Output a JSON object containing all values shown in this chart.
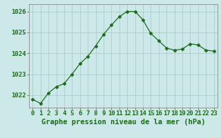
{
  "x": [
    0,
    1,
    2,
    3,
    4,
    5,
    6,
    7,
    8,
    9,
    10,
    11,
    12,
    13,
    14,
    15,
    16,
    17,
    18,
    19,
    20,
    21,
    22,
    23
  ],
  "y": [
    1021.8,
    1021.6,
    1022.1,
    1022.4,
    1022.55,
    1023.0,
    1023.5,
    1023.85,
    1024.35,
    1024.9,
    1025.35,
    1025.75,
    1026.0,
    1026.0,
    1025.6,
    1024.95,
    1024.6,
    1024.25,
    1024.15,
    1024.2,
    1024.45,
    1024.4,
    1024.15,
    1024.1
  ],
  "line_color": "#1a6b1a",
  "marker": "D",
  "marker_size": 2.5,
  "bg_color": "#cce8e8",
  "grid_color": "#aacccc",
  "xlabel": "Graphe pression niveau de la mer (hPa)",
  "ylim": [
    1021.4,
    1026.35
  ],
  "yticks": [
    1022,
    1023,
    1024,
    1025,
    1026
  ],
  "xticks": [
    0,
    1,
    2,
    3,
    4,
    5,
    6,
    7,
    8,
    9,
    10,
    11,
    12,
    13,
    14,
    15,
    16,
    17,
    18,
    19,
    20,
    21,
    22,
    23
  ],
  "tick_label_color": "#1a6b1a",
  "xlabel_color": "#1a6b1a",
  "xlabel_fontsize": 7.5,
  "tick_fontsize": 6.5
}
